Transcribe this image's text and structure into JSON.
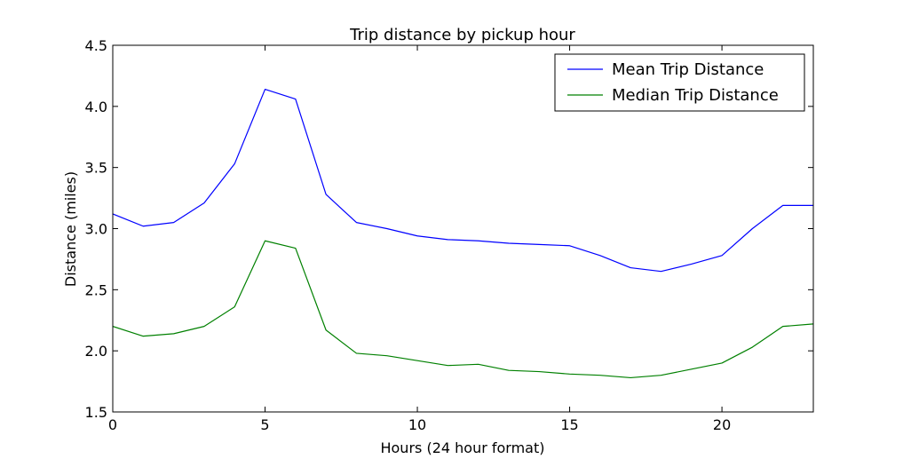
{
  "chart_data": {
    "type": "line",
    "title": "Trip distance by pickup hour",
    "xlabel": "Hours (24 hour format)",
    "ylabel": "Distance (miles)",
    "xlim": [
      0,
      23
    ],
    "ylim": [
      1.5,
      4.5
    ],
    "xticks": [
      0,
      5,
      10,
      15,
      20
    ],
    "xtick_labels": [
      "0",
      "5",
      "10",
      "15",
      "20"
    ],
    "yticks": [
      1.5,
      2.0,
      2.5,
      3.0,
      3.5,
      4.0,
      4.5
    ],
    "ytick_labels": [
      "1.5",
      "2.0",
      "2.5",
      "3.0",
      "3.5",
      "4.0",
      "4.5"
    ],
    "grid": false,
    "legend_position": "top-right",
    "x": [
      0,
      1,
      2,
      3,
      4,
      5,
      6,
      7,
      8,
      9,
      10,
      11,
      12,
      13,
      14,
      15,
      16,
      17,
      18,
      19,
      20,
      21,
      22,
      23
    ],
    "series": [
      {
        "name": "Mean Trip Distance",
        "color": "#0000ff",
        "values": [
          3.12,
          3.02,
          3.05,
          3.21,
          3.53,
          4.14,
          4.06,
          3.28,
          3.05,
          3.0,
          2.94,
          2.91,
          2.9,
          2.88,
          2.87,
          2.86,
          2.78,
          2.68,
          2.65,
          2.71,
          2.78,
          3.0,
          3.19,
          3.19
        ]
      },
      {
        "name": "Median Trip Distance",
        "color": "#008000",
        "values": [
          2.2,
          2.12,
          2.14,
          2.2,
          2.36,
          2.9,
          2.84,
          2.17,
          1.98,
          1.96,
          1.92,
          1.88,
          1.89,
          1.84,
          1.83,
          1.81,
          1.8,
          1.78,
          1.8,
          1.85,
          1.9,
          2.03,
          2.2,
          2.22
        ]
      }
    ]
  }
}
